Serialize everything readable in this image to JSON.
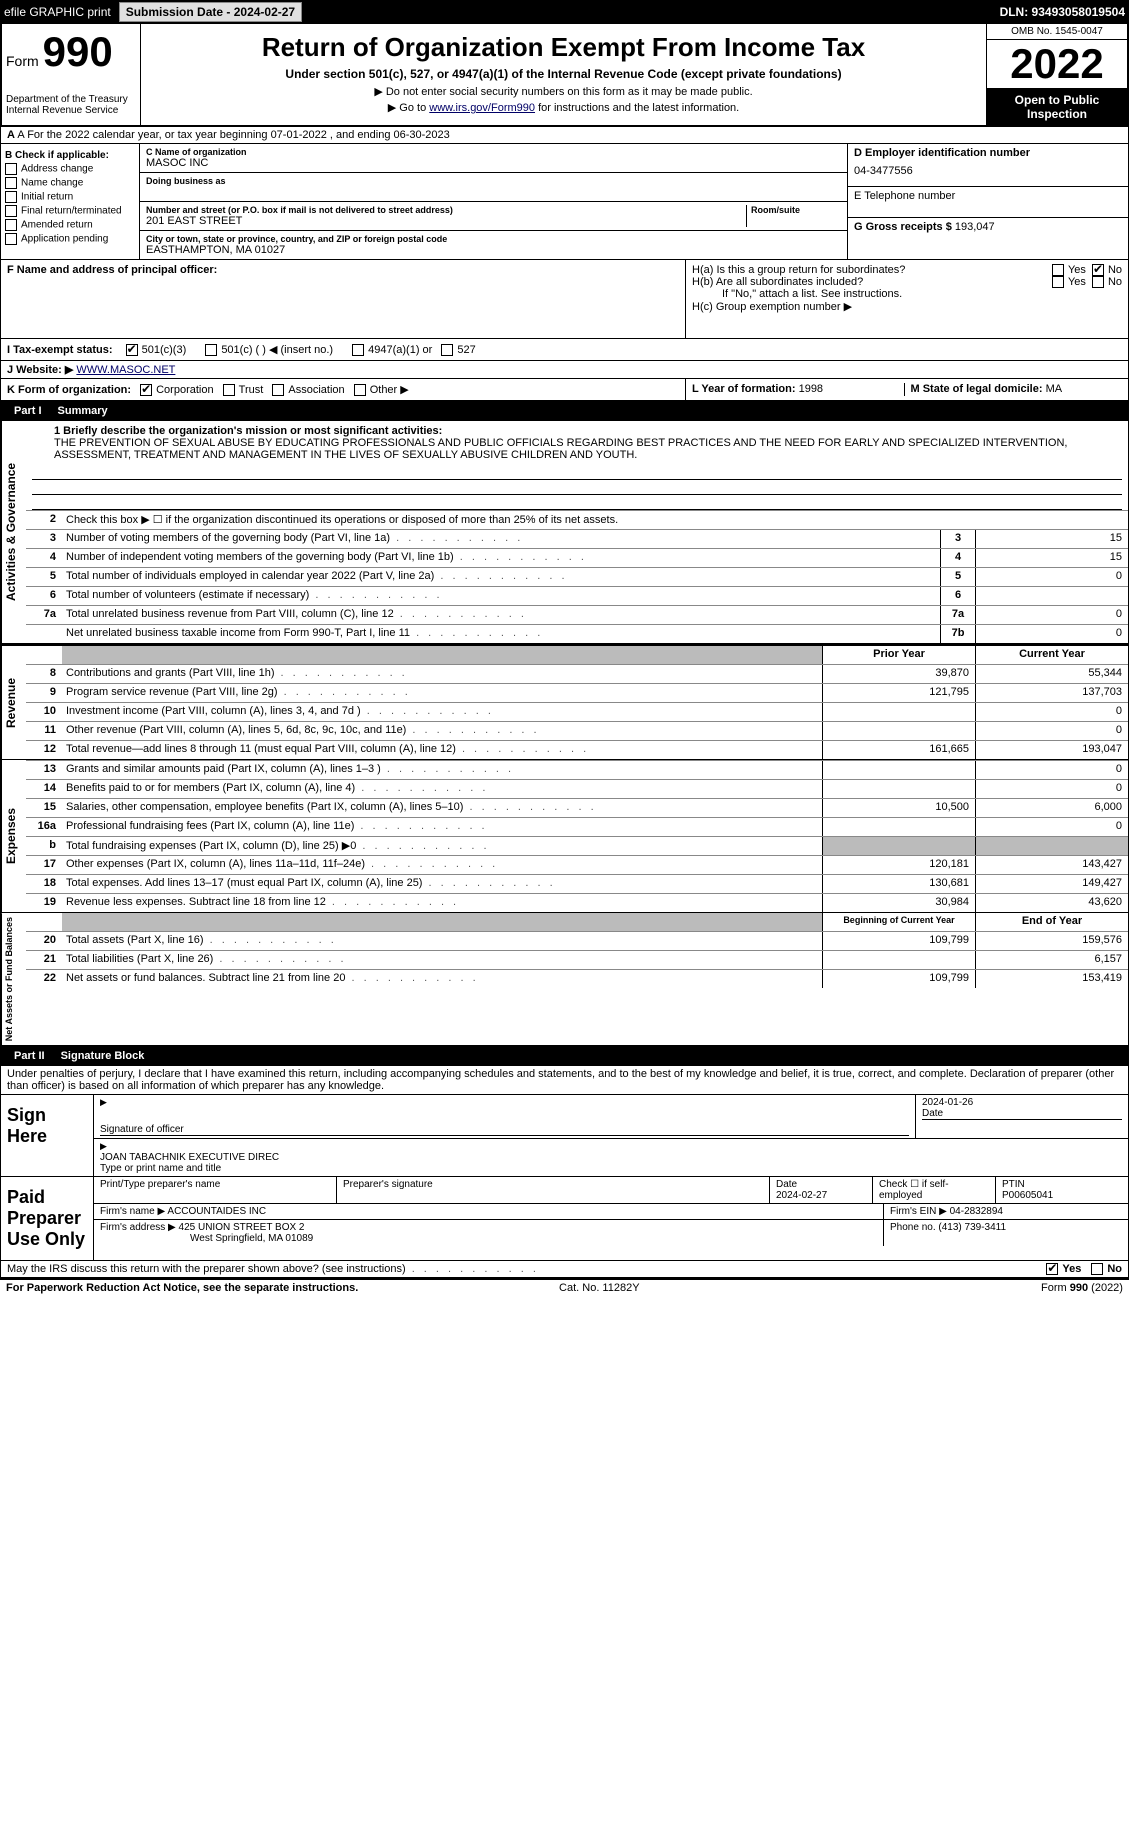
{
  "topbar": {
    "efile": "efile GRAPHIC print",
    "submission_label": "Submission Date - 2024-02-27",
    "dln": "DLN: 93493058019504"
  },
  "header": {
    "form_word": "Form",
    "form_num": "990",
    "dept": "Department of the Treasury Internal Revenue Service",
    "title": "Return of Organization Exempt From Income Tax",
    "subtitle": "Under section 501(c), 527, or 4947(a)(1) of the Internal Revenue Code (except private foundations)",
    "ssn_note": "▶ Do not enter social security numbers on this form as it may be made public.",
    "goto": "▶ Go to www.irs.gov/Form990 for instructions and the latest information.",
    "omb": "OMB No. 1545-0047",
    "year": "2022",
    "open_public": "Open to Public Inspection"
  },
  "row_a": "A For the 2022 calendar year, or tax year beginning 07-01-2022   , and ending 06-30-2023",
  "col_b": {
    "hdr": "B Check if applicable:",
    "items": [
      "Address change",
      "Name change",
      "Initial return",
      "Final return/terminated",
      "Amended return",
      "Application pending"
    ]
  },
  "col_c": {
    "name_label": "C Name of organization",
    "name": "MASOC INC",
    "dba_label": "Doing business as",
    "addr_label": "Number and street (or P.O. box if mail is not delivered to street address)",
    "room_label": "Room/suite",
    "addr": "201 EAST STREET",
    "city_label": "City or town, state or province, country, and ZIP or foreign postal code",
    "city": "EASTHAMPTON, MA  01027",
    "f_label": "F  Name and address of principal officer:"
  },
  "col_d": {
    "ein_label": "D Employer identification number",
    "ein": "04-3477556",
    "tel_label": "E Telephone number",
    "gross_label": "G Gross receipts $",
    "gross": "193,047"
  },
  "h": {
    "a_label": "H(a)  Is this a group return for subordinates?",
    "b_label": "H(b)  Are all subordinates included?",
    "b_note": "If \"No,\" attach a list. See instructions.",
    "c_label": "H(c)  Group exemption number ▶",
    "yes": "Yes",
    "no": "No"
  },
  "i_label": "I    Tax-exempt status:",
  "i_opts": [
    "501(c)(3)",
    "501(c) (  ) ◀ (insert no.)",
    "4947(a)(1) or",
    "527"
  ],
  "j_label": "J   Website: ▶",
  "j_val": "WWW.MASOC.NET",
  "k_label": "K Form of organization:",
  "k_opts": [
    "Corporation",
    "Trust",
    "Association",
    "Other ▶"
  ],
  "l_label": "L Year of formation:",
  "l_val": "1998",
  "m_label": "M State of legal domicile:",
  "m_val": "MA",
  "part1": {
    "hdr_num": "Part I",
    "hdr_title": "Summary",
    "side_gov": "Activities & Governance",
    "side_rev": "Revenue",
    "side_exp": "Expenses",
    "side_net": "Net Assets or Fund Balances",
    "line1_label": "1  Briefly describe the organization's mission or most significant activities:",
    "mission": "THE PREVENTION OF SEXUAL ABUSE BY EDUCATING PROFESSIONALS AND PUBLIC OFFICIALS REGARDING BEST PRACTICES AND THE NEED FOR EARLY AND SPECIALIZED INTERVENTION, ASSESSMENT, TREATMENT AND MANAGEMENT IN THE LIVES OF SEXUALLY ABUSIVE CHILDREN AND YOUTH.",
    "line2": "Check this box ▶ ☐  if the organization discontinued its operations or disposed of more than 25% of its net assets.",
    "lines_box": [
      {
        "n": "3",
        "t": "Number of voting members of the governing body (Part VI, line 1a)",
        "box": "3",
        "v": "15"
      },
      {
        "n": "4",
        "t": "Number of independent voting members of the governing body (Part VI, line 1b)",
        "box": "4",
        "v": "15"
      },
      {
        "n": "5",
        "t": "Total number of individuals employed in calendar year 2022 (Part V, line 2a)",
        "box": "5",
        "v": "0"
      },
      {
        "n": "6",
        "t": "Total number of volunteers (estimate if necessary)",
        "box": "6",
        "v": ""
      },
      {
        "n": "7a",
        "t": "Total unrelated business revenue from Part VIII, column (C), line 12",
        "box": "7a",
        "v": "0"
      },
      {
        "n": "",
        "t": "Net unrelated business taxable income from Form 990-T, Part I, line 11",
        "box": "7b",
        "v": "0"
      }
    ],
    "col_prior": "Prior Year",
    "col_curr": "Current Year",
    "rev_lines": [
      {
        "n": "8",
        "t": "Contributions and grants (Part VIII, line 1h)",
        "p": "39,870",
        "c": "55,344"
      },
      {
        "n": "9",
        "t": "Program service revenue (Part VIII, line 2g)",
        "p": "121,795",
        "c": "137,703"
      },
      {
        "n": "10",
        "t": "Investment income (Part VIII, column (A), lines 3, 4, and 7d )",
        "p": "",
        "c": "0"
      },
      {
        "n": "11",
        "t": "Other revenue (Part VIII, column (A), lines 5, 6d, 8c, 9c, 10c, and 11e)",
        "p": "",
        "c": "0"
      },
      {
        "n": "12",
        "t": "Total revenue—add lines 8 through 11 (must equal Part VIII, column (A), line 12)",
        "p": "161,665",
        "c": "193,047"
      }
    ],
    "exp_lines": [
      {
        "n": "13",
        "t": "Grants and similar amounts paid (Part IX, column (A), lines 1–3 )",
        "p": "",
        "c": "0"
      },
      {
        "n": "14",
        "t": "Benefits paid to or for members (Part IX, column (A), line 4)",
        "p": "",
        "c": "0"
      },
      {
        "n": "15",
        "t": "Salaries, other compensation, employee benefits (Part IX, column (A), lines 5–10)",
        "p": "10,500",
        "c": "6,000"
      },
      {
        "n": "16a",
        "t": "Professional fundraising fees (Part IX, column (A), line 11e)",
        "p": "",
        "c": "0"
      },
      {
        "n": "b",
        "t": "Total fundraising expenses (Part IX, column (D), line 25) ▶0",
        "p": "SHADE",
        "c": "SHADE"
      },
      {
        "n": "17",
        "t": "Other expenses (Part IX, column (A), lines 11a–11d, 11f–24e)",
        "p": "120,181",
        "c": "143,427"
      },
      {
        "n": "18",
        "t": "Total expenses. Add lines 13–17 (must equal Part IX, column (A), line 25)",
        "p": "130,681",
        "c": "149,427"
      },
      {
        "n": "19",
        "t": "Revenue less expenses. Subtract line 18 from line 12",
        "p": "30,984",
        "c": "43,620"
      }
    ],
    "col_begin": "Beginning of Current Year",
    "col_end": "End of Year",
    "net_lines": [
      {
        "n": "20",
        "t": "Total assets (Part X, line 16)",
        "p": "109,799",
        "c": "159,576"
      },
      {
        "n": "21",
        "t": "Total liabilities (Part X, line 26)",
        "p": "",
        "c": "6,157"
      },
      {
        "n": "22",
        "t": "Net assets or fund balances. Subtract line 21 from line 20",
        "p": "109,799",
        "c": "153,419"
      }
    ]
  },
  "part2": {
    "hdr_num": "Part II",
    "hdr_title": "Signature Block",
    "perjury": "Under penalties of perjury, I declare that I have examined this return, including accompanying schedules and statements, and to the best of my knowledge and belief, it is true, correct, and complete. Declaration of preparer (other than officer) is based on all information of which preparer has any knowledge."
  },
  "sign": {
    "label": "Sign Here",
    "sig_officer": "Signature of officer",
    "date": "2024-01-26",
    "date_label": "Date",
    "name": "JOAN TABACHNIK  EXECUTIVE DIREC",
    "name_label": "Type or print name and title"
  },
  "paid": {
    "label": "Paid Preparer Use Only",
    "h1": "Print/Type preparer's name",
    "h2": "Preparer's signature",
    "h3": "Date",
    "h3v": "2024-02-27",
    "h4": "Check ☐ if self-employed",
    "h5": "PTIN",
    "h5v": "P00605041",
    "firm_name_label": "Firm's name    ▶",
    "firm_name": "ACCOUNTAIDES INC",
    "firm_ein_label": "Firm's EIN ▶",
    "firm_ein": "04-2832894",
    "firm_addr_label": "Firm's address ▶",
    "firm_addr1": "425 UNION STREET BOX 2",
    "firm_addr2": "West Springfield, MA  01089",
    "phone_label": "Phone no.",
    "phone": "(413) 739-3411"
  },
  "discuss": "May the IRS discuss this return with the preparer shown above? (see instructions)",
  "discuss_yes": "Yes",
  "discuss_no": "No",
  "footer": {
    "pra": "For Paperwork Reduction Act Notice, see the separate instructions.",
    "cat": "Cat. No. 11282Y",
    "form": "Form 990 (2022)"
  }
}
